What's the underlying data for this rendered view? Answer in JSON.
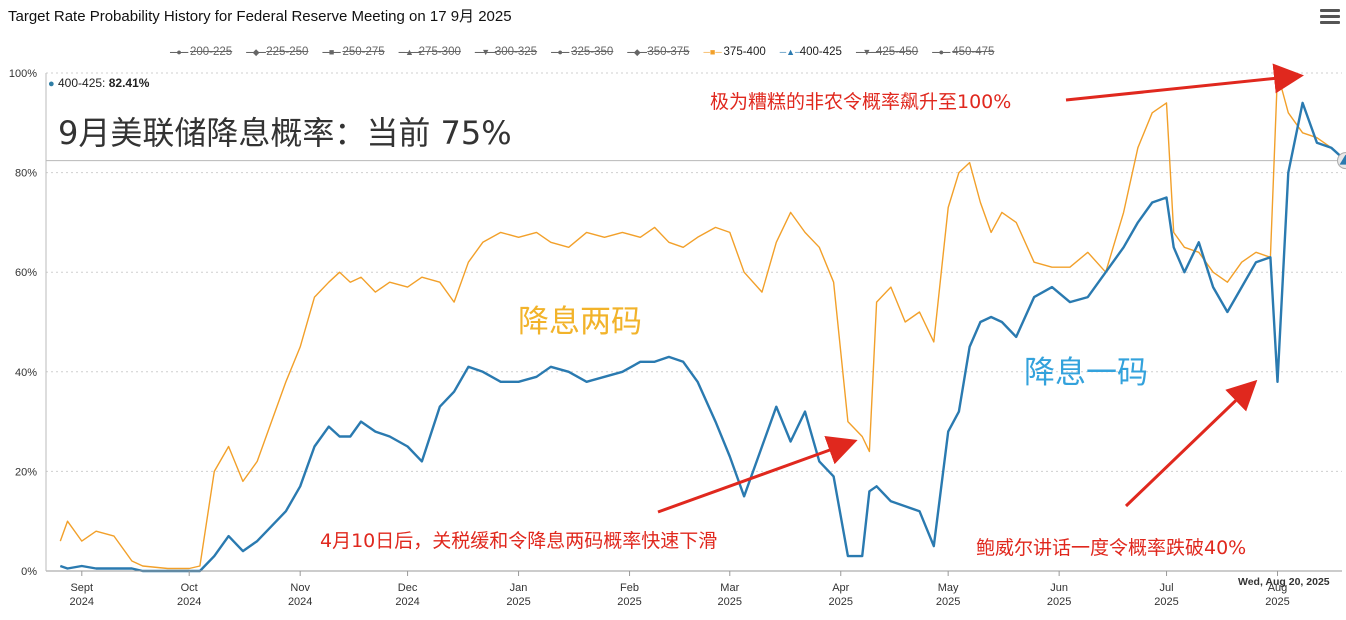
{
  "title": "Target Rate Probability History for Federal Reserve Meeting on 17 9月 2025",
  "legend": [
    {
      "label": "200-225",
      "symbol": "●",
      "color": "#666666",
      "hidden": true
    },
    {
      "label": "225-250",
      "symbol": "◆",
      "color": "#666666",
      "hidden": true
    },
    {
      "label": "250-275",
      "symbol": "■",
      "color": "#666666",
      "hidden": true
    },
    {
      "label": "275-300",
      "symbol": "▲",
      "color": "#666666",
      "hidden": true
    },
    {
      "label": "300-325",
      "symbol": "▼",
      "color": "#666666",
      "hidden": true
    },
    {
      "label": "325-350",
      "symbol": "●",
      "color": "#666666",
      "hidden": true
    },
    {
      "label": "350-375",
      "symbol": "◆",
      "color": "#666666",
      "hidden": true
    },
    {
      "label": "375-400",
      "symbol": "■",
      "color": "#f2a02a",
      "hidden": false
    },
    {
      "label": "400-425",
      "symbol": "▲",
      "color": "#2a7ab0",
      "hidden": false
    },
    {
      "label": "425-450",
      "symbol": "▼",
      "color": "#666666",
      "hidden": true
    },
    {
      "label": "450-475",
      "symbol": "●",
      "color": "#666666",
      "hidden": true
    }
  ],
  "tooltip": {
    "series": "400-425:",
    "value": "82.41%"
  },
  "subheading": "9月美联储降息概率：当前 75%",
  "annotations": {
    "nfp": "极为糟糕的非农令概率飙升至100%",
    "two_cuts": "降息两码",
    "one_cut": "降息一码",
    "tariff": "4月10日后，关税缓和令降息两码概率快速下滑",
    "powell": "鲍威尔讲话一度令概率跌破40%"
  },
  "crosshair_date": "Wed, Aug 20, 2025",
  "chart_data": {
    "type": "line",
    "ylim": [
      0,
      100
    ],
    "yticks": [
      "0%",
      "20%",
      "40%",
      "60%",
      "80%",
      "100%"
    ],
    "xticks": [
      {
        "month": "Sept",
        "year": "2024"
      },
      {
        "month": "Oct",
        "year": "2024"
      },
      {
        "month": "Nov",
        "year": "2024"
      },
      {
        "month": "Dec",
        "year": "2024"
      },
      {
        "month": "Jan",
        "year": "2025"
      },
      {
        "month": "Feb",
        "year": "2025"
      },
      {
        "month": "Mar",
        "year": "2025"
      },
      {
        "month": "Apr",
        "year": "2025"
      },
      {
        "month": "May",
        "year": "2025"
      },
      {
        "month": "Jun",
        "year": "2025"
      },
      {
        "month": "Jul",
        "year": "2025"
      },
      {
        "month": "Aug",
        "year": "2025"
      }
    ],
    "grid": true,
    "series": [
      {
        "name": "375-400",
        "color": "#f2a02a",
        "x": [
          "2024-08-26",
          "2024-08-28",
          "2024-09-01",
          "2024-09-05",
          "2024-09-10",
          "2024-09-15",
          "2024-09-18",
          "2024-09-25",
          "2024-10-01",
          "2024-10-04",
          "2024-10-08",
          "2024-10-12",
          "2024-10-16",
          "2024-10-20",
          "2024-10-24",
          "2024-10-28",
          "2024-11-01",
          "2024-11-05",
          "2024-11-09",
          "2024-11-12",
          "2024-11-15",
          "2024-11-18",
          "2024-11-22",
          "2024-11-26",
          "2024-12-01",
          "2024-12-05",
          "2024-12-10",
          "2024-12-14",
          "2024-12-18",
          "2024-12-22",
          "2024-12-27",
          "2025-01-01",
          "2025-01-06",
          "2025-01-10",
          "2025-01-15",
          "2025-01-20",
          "2025-01-25",
          "2025-01-30",
          "2025-02-04",
          "2025-02-08",
          "2025-02-12",
          "2025-02-16",
          "2025-02-20",
          "2025-02-25",
          "2025-03-01",
          "2025-03-05",
          "2025-03-10",
          "2025-03-14",
          "2025-03-18",
          "2025-03-22",
          "2025-03-26",
          "2025-03-30",
          "2025-04-03",
          "2025-04-07",
          "2025-04-09",
          "2025-04-11",
          "2025-04-15",
          "2025-04-19",
          "2025-04-23",
          "2025-04-27",
          "2025-05-01",
          "2025-05-04",
          "2025-05-07",
          "2025-05-10",
          "2025-05-13",
          "2025-05-16",
          "2025-05-20",
          "2025-05-25",
          "2025-05-30",
          "2025-06-04",
          "2025-06-09",
          "2025-06-14",
          "2025-06-19",
          "2025-06-23",
          "2025-06-27",
          "2025-07-01",
          "2025-07-03",
          "2025-07-06",
          "2025-07-10",
          "2025-07-14",
          "2025-07-18",
          "2025-07-22",
          "2025-07-26",
          "2025-07-30",
          "2025-08-01",
          "2025-08-04",
          "2025-08-08",
          "2025-08-12",
          "2025-08-16",
          "2025-08-20"
        ],
        "values": [
          6,
          10,
          6,
          8,
          7,
          2,
          1,
          0.5,
          0.5,
          1,
          20,
          25,
          18,
          22,
          30,
          38,
          45,
          55,
          58,
          60,
          58,
          59,
          56,
          58,
          57,
          59,
          58,
          54,
          62,
          66,
          68,
          67,
          68,
          66,
          65,
          68,
          67,
          68,
          67,
          69,
          66,
          65,
          67,
          69,
          68,
          60,
          56,
          66,
          72,
          68,
          65,
          58,
          30,
          27,
          24,
          54,
          57,
          50,
          52,
          46,
          73,
          80,
          82,
          74,
          68,
          72,
          70,
          62,
          61,
          61,
          64,
          60,
          72,
          85,
          92,
          94,
          68,
          65,
          64,
          60,
          58,
          62,
          64,
          63,
          100,
          92,
          88,
          87,
          85,
          82.41
        ]
      },
      {
        "name": "400-425",
        "color": "#2a7ab0",
        "x": [
          "2024-08-26",
          "2024-08-28",
          "2024-09-01",
          "2024-09-05",
          "2024-09-10",
          "2024-09-15",
          "2024-09-18",
          "2024-09-25",
          "2024-10-01",
          "2024-10-04",
          "2024-10-08",
          "2024-10-12",
          "2024-10-16",
          "2024-10-20",
          "2024-10-24",
          "2024-10-28",
          "2024-11-01",
          "2024-11-05",
          "2024-11-09",
          "2024-11-12",
          "2024-11-15",
          "2024-11-18",
          "2024-11-22",
          "2024-11-26",
          "2024-12-01",
          "2024-12-05",
          "2024-12-10",
          "2024-12-14",
          "2024-12-18",
          "2024-12-22",
          "2024-12-27",
          "2025-01-01",
          "2025-01-06",
          "2025-01-10",
          "2025-01-15",
          "2025-01-20",
          "2025-01-25",
          "2025-01-30",
          "2025-02-04",
          "2025-02-08",
          "2025-02-12",
          "2025-02-16",
          "2025-02-20",
          "2025-02-25",
          "2025-03-01",
          "2025-03-05",
          "2025-03-10",
          "2025-03-14",
          "2025-03-18",
          "2025-03-22",
          "2025-03-26",
          "2025-03-30",
          "2025-04-03",
          "2025-04-07",
          "2025-04-09",
          "2025-04-11",
          "2025-04-15",
          "2025-04-19",
          "2025-04-23",
          "2025-04-27",
          "2025-05-01",
          "2025-05-04",
          "2025-05-07",
          "2025-05-10",
          "2025-05-13",
          "2025-05-16",
          "2025-05-20",
          "2025-05-25",
          "2025-05-30",
          "2025-06-04",
          "2025-06-09",
          "2025-06-14",
          "2025-06-19",
          "2025-06-23",
          "2025-06-27",
          "2025-07-01",
          "2025-07-03",
          "2025-07-06",
          "2025-07-10",
          "2025-07-14",
          "2025-07-18",
          "2025-07-22",
          "2025-07-26",
          "2025-07-30",
          "2025-08-01",
          "2025-08-04",
          "2025-08-08",
          "2025-08-12",
          "2025-08-16",
          "2025-08-20"
        ],
        "values": [
          1,
          0.5,
          1,
          0.5,
          0.5,
          0.5,
          0,
          0,
          0,
          0,
          3,
          7,
          4,
          6,
          9,
          12,
          17,
          25,
          29,
          27,
          27,
          30,
          28,
          27,
          25,
          22,
          33,
          36,
          41,
          40,
          38,
          38,
          39,
          41,
          40,
          38,
          39,
          40,
          42,
          42,
          43,
          42,
          38,
          30,
          23,
          15,
          25,
          33,
          26,
          32,
          22,
          19,
          3,
          3,
          16,
          17,
          14,
          13,
          12,
          5,
          28,
          32,
          45,
          50,
          51,
          50,
          47,
          55,
          57,
          54,
          55,
          60,
          65,
          70,
          74,
          75,
          65,
          60,
          66,
          57,
          52,
          57,
          62,
          63,
          38,
          80,
          94,
          86,
          85,
          82.41
        ]
      }
    ]
  }
}
